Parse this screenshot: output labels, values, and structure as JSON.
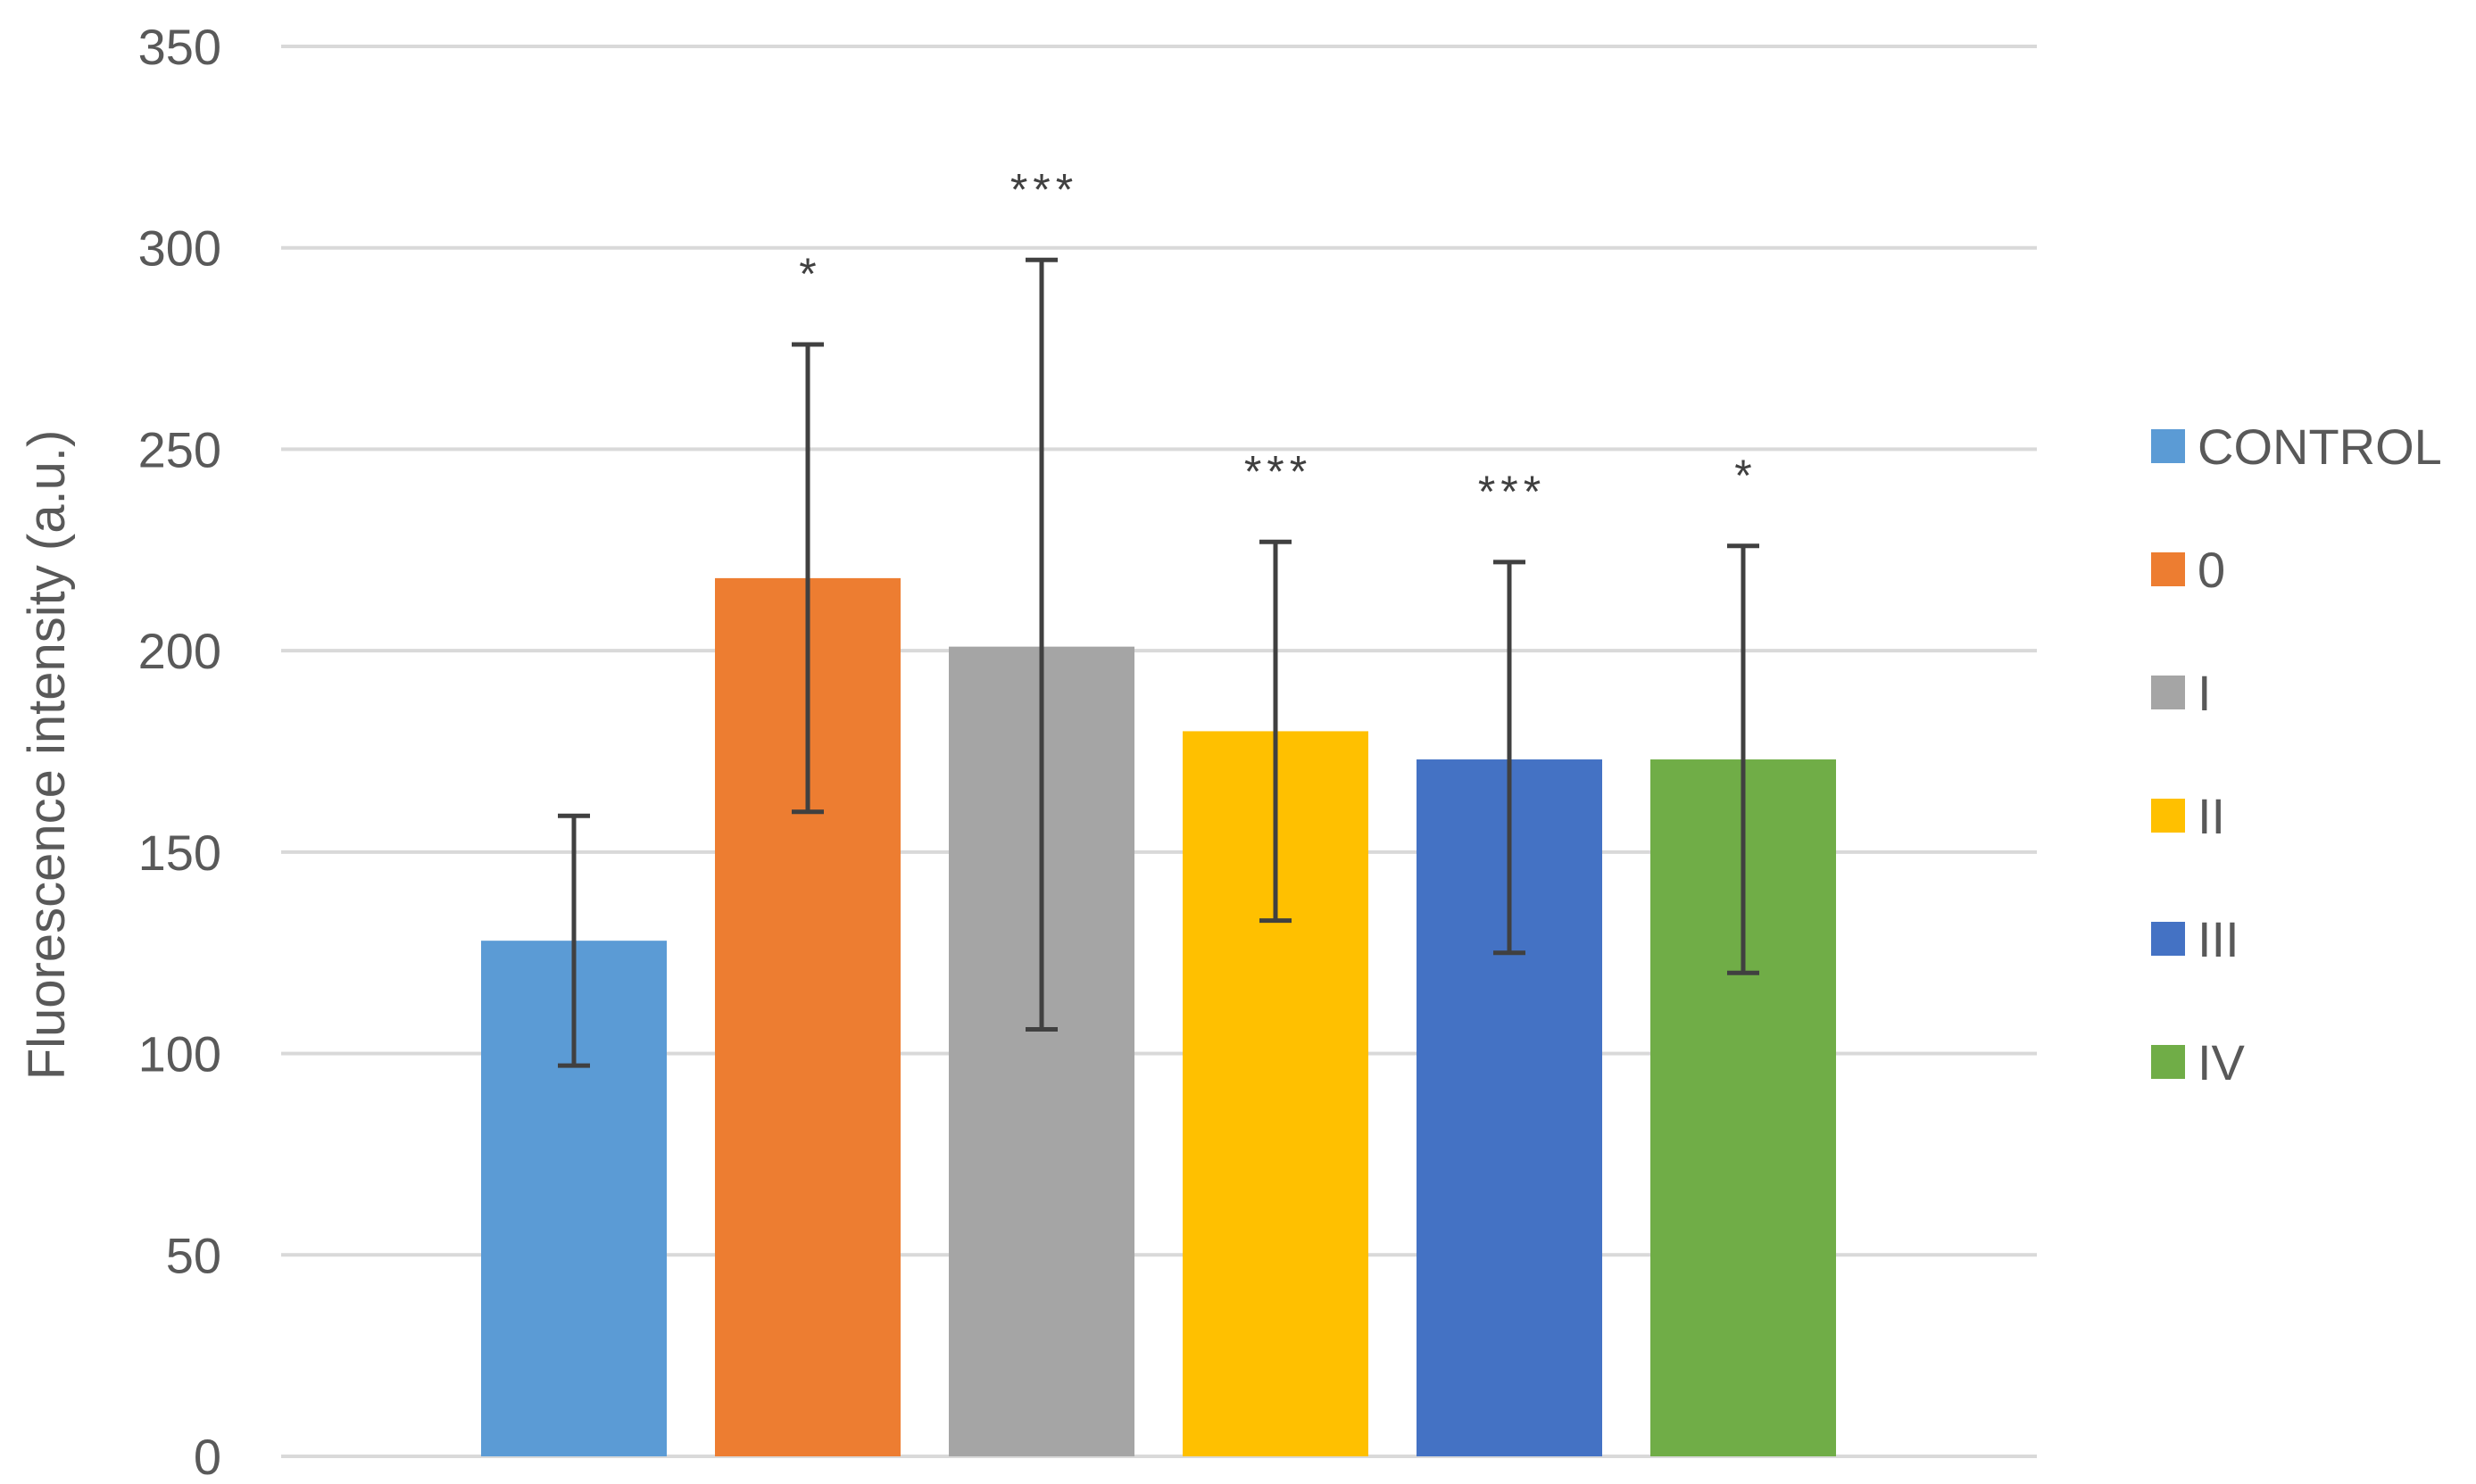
{
  "chart_data": {
    "type": "bar",
    "title": "",
    "xlabel": "",
    "ylabel": "Fluorescence intensity (a.u.)",
    "ylim": [
      0,
      350
    ],
    "yticks": [
      0,
      50,
      100,
      150,
      200,
      250,
      300,
      350
    ],
    "grid": true,
    "legend_position": "right",
    "series": [
      {
        "name": "CONTROL",
        "value": 128,
        "error_low": 97,
        "error_high": 159,
        "significance": "",
        "color": "#5B9BD5"
      },
      {
        "name": "0",
        "value": 218,
        "error_low": 160,
        "error_high": 276,
        "significance": "*",
        "color": "#ED7D31"
      },
      {
        "name": "I",
        "value": 201,
        "error_low": 106,
        "error_high": 297,
        "significance": "***",
        "color": "#A5A5A5"
      },
      {
        "name": "II",
        "value": 180,
        "error_low": 133,
        "error_high": 227,
        "significance": "***",
        "color": "#FFC000"
      },
      {
        "name": "III",
        "value": 173,
        "error_low": 125,
        "error_high": 222,
        "significance": "***",
        "color": "#4472C4"
      },
      {
        "name": "IV",
        "value": 173,
        "error_low": 120,
        "error_high": 226,
        "significance": "*",
        "color": "#70AD47"
      }
    ],
    "colors": {
      "grid": "#D9D9D9",
      "error_bar": "#404040",
      "text": "#595959"
    }
  }
}
